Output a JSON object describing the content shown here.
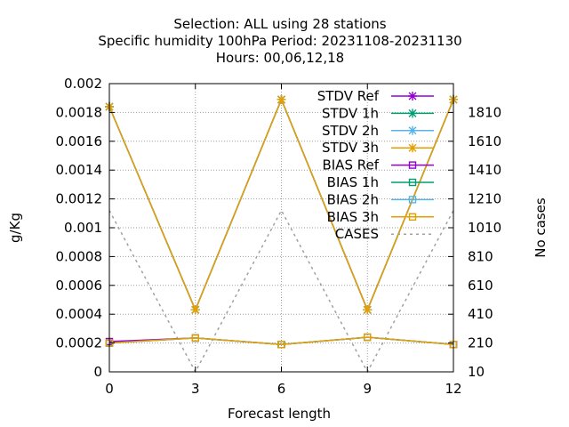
{
  "chart_data": {
    "type": "line",
    "title_lines": [
      "Selection: ALL using    28 stations",
      "Specific humidity 100hPa   Period: 20231108-20231130",
      "Hours:  00,06,12,18"
    ],
    "xlabel": "Forecast length",
    "ylabel": "g/Kg",
    "y2label": "No cases",
    "x": [
      0,
      3,
      6,
      9,
      12
    ],
    "xlim": [
      0,
      12
    ],
    "ylim": [
      0,
      0.002
    ],
    "y2lim": [
      10,
      2010
    ],
    "x_ticks": [
      "0",
      "3",
      "6",
      "9",
      "12"
    ],
    "y_ticks": [
      "0",
      "0.0002",
      "0.0004",
      "0.0006",
      "0.0008",
      "0.001",
      "0.0012",
      "0.0014",
      "0.0016",
      "0.0018",
      "0.002"
    ],
    "y2_ticks": [
      "10",
      "210",
      "410",
      "610",
      "810",
      "1010",
      "1210",
      "1410",
      "1610",
      "1810"
    ],
    "grid": true,
    "legend_position": "top-right",
    "series": [
      {
        "name": "STDV Ref",
        "axis": "y",
        "marker": "star",
        "color": "#9400d3",
        "dash": false,
        "values": [
          0.00184,
          0.00043,
          0.00189,
          0.00043,
          0.00189
        ]
      },
      {
        "name": "STDV 1h",
        "axis": "y",
        "marker": "star",
        "color": "#009e73",
        "dash": false,
        "values": [
          0.00184,
          0.00043,
          0.00189,
          0.00043,
          0.00189
        ]
      },
      {
        "name": "STDV 2h",
        "axis": "y",
        "marker": "star",
        "color": "#56b4e9",
        "dash": false,
        "values": [
          0.00184,
          0.00043,
          0.00189,
          0.00043,
          0.00189
        ]
      },
      {
        "name": "STDV 3h",
        "axis": "y",
        "marker": "star",
        "color": "#e69f00",
        "dash": false,
        "values": [
          0.00184,
          0.00043,
          0.00189,
          0.00043,
          0.00189
        ]
      },
      {
        "name": "BIAS Ref",
        "axis": "y",
        "marker": "square",
        "color": "#9400d3",
        "dash": false,
        "values": [
          0.00021,
          0.000235,
          0.00019,
          0.00024,
          0.00019
        ]
      },
      {
        "name": "BIAS 1h",
        "axis": "y",
        "marker": "square",
        "color": "#009e73",
        "dash": false,
        "values": [
          0.0002,
          0.000235,
          0.00019,
          0.00024,
          0.00019
        ]
      },
      {
        "name": "BIAS 2h",
        "axis": "y",
        "marker": "square",
        "color": "#56b4e9",
        "dash": false,
        "values": [
          0.0002,
          0.000235,
          0.00019,
          0.00024,
          0.00019
        ]
      },
      {
        "name": "BIAS 3h",
        "axis": "y",
        "marker": "square",
        "color": "#e69f00",
        "dash": false,
        "values": [
          0.0002,
          0.000235,
          0.00019,
          0.00024,
          0.00019
        ]
      },
      {
        "name": "CASES",
        "axis": "y2",
        "marker": "none",
        "color": "#a0a0a0",
        "dash": true,
        "values": [
          1130,
          10,
          1130,
          10,
          1130
        ]
      }
    ]
  }
}
